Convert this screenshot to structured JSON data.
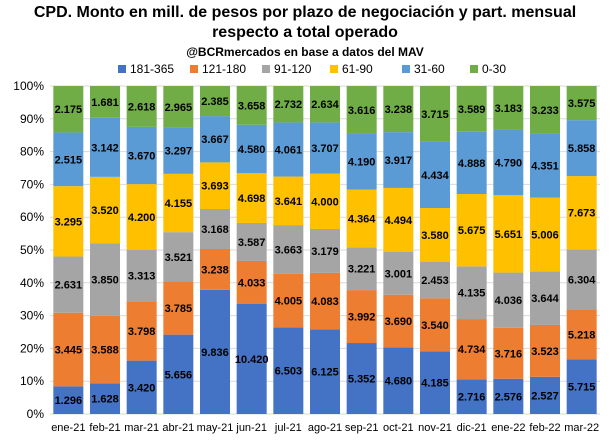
{
  "title_line1": "CPD. Monto en mill. de pesos por plazo de negociación y part. mensual",
  "title_line2": "respecto a total operado",
  "subtitle": "@BCRmercados en base a datos del MAV",
  "chart_data": {
    "type": "bar",
    "stacked": "percent",
    "categories": [
      "ene-21",
      "feb-21",
      "mar-21",
      "abr-21",
      "may-21",
      "jun-21",
      "jul-21",
      "ago-21",
      "sep-21",
      "oct-21",
      "nov-21",
      "dic-21",
      "ene-22",
      "feb-22",
      "mar-22"
    ],
    "series": [
      {
        "name": "181-365",
        "color": "#4472C4",
        "values": [
          1.296,
          1.628,
          3.42,
          5.656,
          9.836,
          10.42,
          6.503,
          6.125,
          5.352,
          4.68,
          4.185,
          2.716,
          2.576,
          2.527,
          5.715
        ]
      },
      {
        "name": "121-180",
        "color": "#ED7D31",
        "values": [
          3.445,
          3.588,
          3.798,
          3.785,
          3.238,
          4.033,
          4.005,
          4.083,
          3.992,
          3.69,
          3.54,
          4.734,
          3.716,
          3.523,
          5.218
        ]
      },
      {
        "name": "91-120",
        "color": "#A5A5A5",
        "values": [
          2.631,
          3.85,
          3.313,
          3.521,
          3.168,
          3.587,
          3.663,
          3.179,
          3.221,
          3.001,
          2.453,
          4.135,
          4.036,
          3.644,
          6.304
        ]
      },
      {
        "name": "61-90",
        "color": "#FFC000",
        "values": [
          3.295,
          3.52,
          4.2,
          4.155,
          3.693,
          4.698,
          3.641,
          4.0,
          4.364,
          4.494,
          3.58,
          5.675,
          5.651,
          5.006,
          7.673
        ]
      },
      {
        "name": "31-60",
        "color": "#5B9BD5",
        "values": [
          2.515,
          3.142,
          3.67,
          3.297,
          3.667,
          4.58,
          4.061,
          3.707,
          4.19,
          3.917,
          4.434,
          4.888,
          4.79,
          4.351,
          5.858
        ]
      },
      {
        "name": "0-30",
        "color": "#70AD47",
        "values": [
          2.175,
          1.681,
          2.618,
          2.965,
          2.385,
          3.658,
          2.732,
          2.634,
          3.616,
          3.238,
          3.715,
          3.589,
          3.183,
          3.233,
          3.575
        ]
      }
    ],
    "y_ticks": [
      "0%",
      "10%",
      "20%",
      "30%",
      "40%",
      "50%",
      "60%",
      "70%",
      "80%",
      "90%",
      "100%"
    ],
    "ylim": [
      0,
      100
    ],
    "grid": true,
    "legend_position": "top"
  }
}
